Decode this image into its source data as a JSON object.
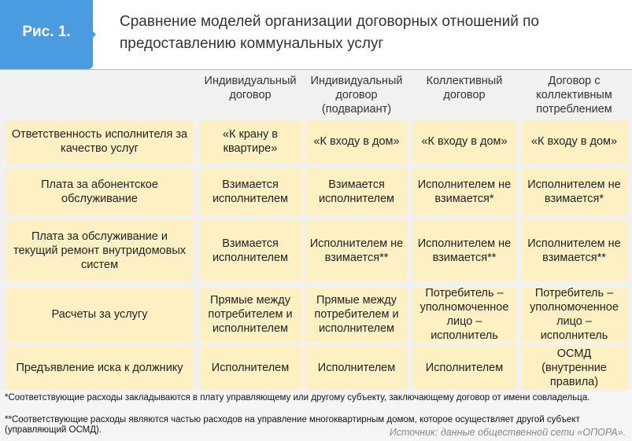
{
  "header": {
    "label": "Рис. 1.",
    "title": "Сравнение моделей организации договорных отношений по предоставлению коммунальных услуг"
  },
  "table": {
    "columns": [
      "Индивидуальный договор",
      "Индивидуальный договор (подвариант)",
      "Коллективный договор",
      "Договор с коллективным потреблением"
    ],
    "rows": [
      {
        "label": "Ответственность исполнителя за качество услуг",
        "cells": [
          "«К крану в квартире»",
          "«К входу в дом»",
          "«К входу в дом»",
          "«К входу в дом»"
        ]
      },
      {
        "label": "Плата за абонентское обслуживание",
        "cells": [
          "Взимается исполнителем",
          "Взимается исполнителем",
          "Исполнителем не взимается*",
          "Исполнителем не взимается*"
        ]
      },
      {
        "label": "Плата за обслуживание и текущий ремонт внутридомовых систем",
        "cells": [
          "Взимается исполнителем",
          "Исполнителем не взимается**",
          "Исполнителем не взимается**",
          "Исполнителем не взимается**"
        ]
      },
      {
        "label": "Расчеты за услугу",
        "cells": [
          "Прямые между потребителем и исполнителем",
          "Прямые между потребителем и исполнителем",
          "Потребитель – уполномоченное лицо – исполнитель",
          "Потребитель – уполномоченное лицо – исполнитель"
        ]
      },
      {
        "label": "Предъявление иска к должнику",
        "cells": [
          "Исполнителем",
          "Исполнителем",
          "Исполнителем",
          "ОСМД (внутренние правила)"
        ]
      }
    ]
  },
  "footnotes": [
    "*Соответствующие расходы закладываются в плату управляющему или другому субъекту, заключающему договор от имени совладельца.",
    "**Соответствующие расходы являются частью расходов на управление многоквартирным домом, которое осуществляет другой субъект (управляющий ОСМД)."
  ],
  "source": "Источник: данные общественной сети «ОПОРА»."
}
